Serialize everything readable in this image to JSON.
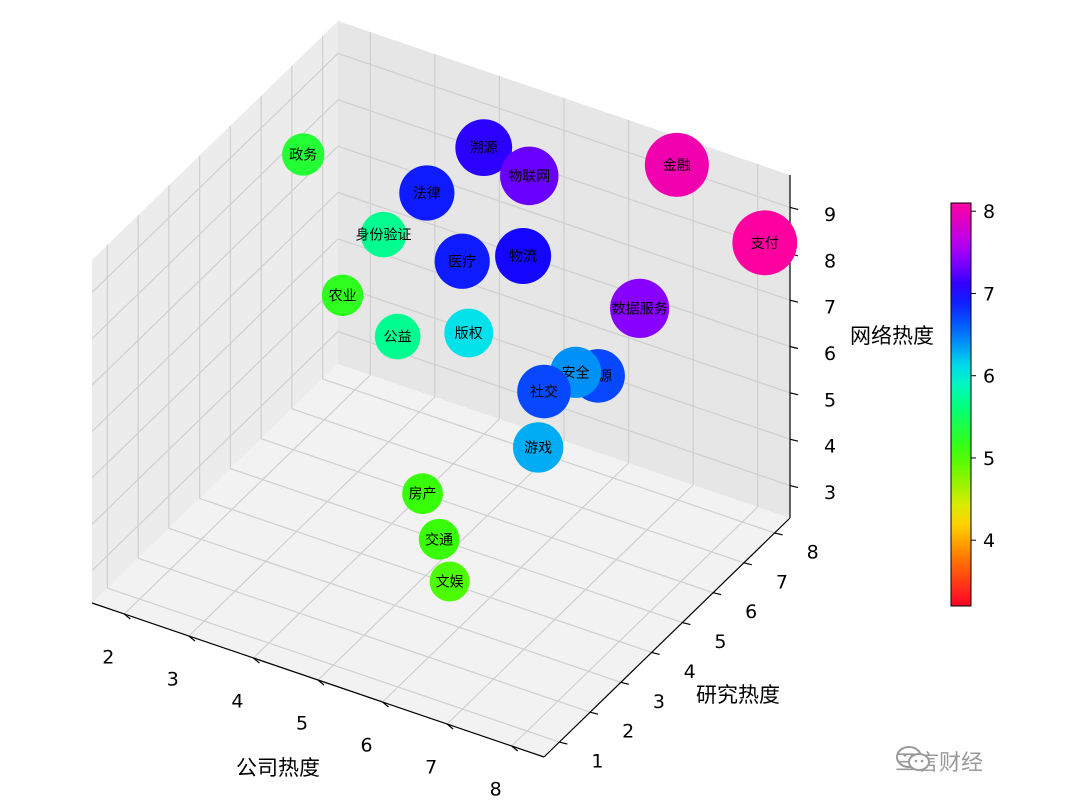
{
  "chart_data": {
    "type": "scatter3d",
    "title": "",
    "xlabel": "公司热度",
    "ylabel": "研究热度",
    "zlabel": "网络热度",
    "x_ticks": [
      "2",
      "3",
      "4",
      "5",
      "6",
      "7",
      "8"
    ],
    "y_ticks": [
      "1",
      "2",
      "3",
      "4",
      "5",
      "6",
      "7",
      "8"
    ],
    "z_ticks": [
      "3",
      "4",
      "5",
      "6",
      "7",
      "8",
      "9"
    ],
    "xlim": [
      1.5,
      8.5
    ],
    "ylim": [
      0.5,
      8.5
    ],
    "zlim": [
      2.3,
      9.7
    ],
    "colormap": "gist_rainbow",
    "color_range": [
      3.2,
      8.1
    ],
    "colorbar_ticks": [
      "4",
      "5",
      "6",
      "7",
      "8"
    ],
    "grid": true,
    "points": [
      {
        "label": "政务",
        "x": 1.2,
        "y": 8.0,
        "z": 7.0,
        "c": 5.3
      },
      {
        "label": "身份验证",
        "x": 2.3,
        "y": 8.3,
        "z": 5.6,
        "c": 5.7
      },
      {
        "label": "农业",
        "x": 2.0,
        "y": 7.6,
        "z": 4.6,
        "c": 5.2
      },
      {
        "label": "公益",
        "x": 2.9,
        "y": 7.5,
        "z": 4.2,
        "c": 5.7
      },
      {
        "label": "房产",
        "x": 4.0,
        "y": 6.0,
        "z": 2.3,
        "c": 5.1
      },
      {
        "label": "交通",
        "x": 4.4,
        "y": 5.7,
        "z": 1.7,
        "c": 5.1
      },
      {
        "label": "文娱",
        "x": 4.8,
        "y": 5.2,
        "z": 1.3,
        "c": 5.0
      },
      {
        "label": "版权",
        "x": 4.0,
        "y": 7.5,
        "z": 4.8,
        "c": 6.1
      },
      {
        "label": "游戏",
        "x": 5.6,
        "y": 6.4,
        "z": 3.8,
        "c": 6.3
      },
      {
        "label": "社交",
        "x": 5.5,
        "y": 6.8,
        "z": 4.7,
        "c": 6.7
      },
      {
        "label": "安全",
        "x": 5.8,
        "y": 7.2,
        "z": 5.0,
        "c": 6.4
      },
      {
        "label": "能源",
        "x": 6.1,
        "y": 7.3,
        "z": 5.0,
        "c": 6.7
      },
      {
        "label": "医疗",
        "x": 3.9,
        "y": 7.5,
        "z": 6.3,
        "c": 6.9
      },
      {
        "label": "物流",
        "x": 4.7,
        "y": 7.8,
        "z": 6.6,
        "c": 7.0
      },
      {
        "label": "法律",
        "x": 3.4,
        "y": 7.4,
        "z": 7.6,
        "c": 6.9
      },
      {
        "label": "溯源",
        "x": 3.9,
        "y": 8.2,
        "z": 8.3,
        "c": 7.1
      },
      {
        "label": "物联网",
        "x": 4.7,
        "y": 8.0,
        "z": 8.2,
        "c": 7.3
      },
      {
        "label": "数据服务",
        "x": 6.6,
        "y": 7.6,
        "z": 6.5,
        "c": 7.4
      },
      {
        "label": "金融",
        "x": 6.7,
        "y": 8.6,
        "z": 9.0,
        "c": 8.0
      },
      {
        "label": "支付",
        "x": 8.3,
        "y": 8.1,
        "z": 8.4,
        "c": 8.1
      }
    ]
  },
  "watermark": {
    "text": "三言财经",
    "icon": "wechat-icon"
  }
}
